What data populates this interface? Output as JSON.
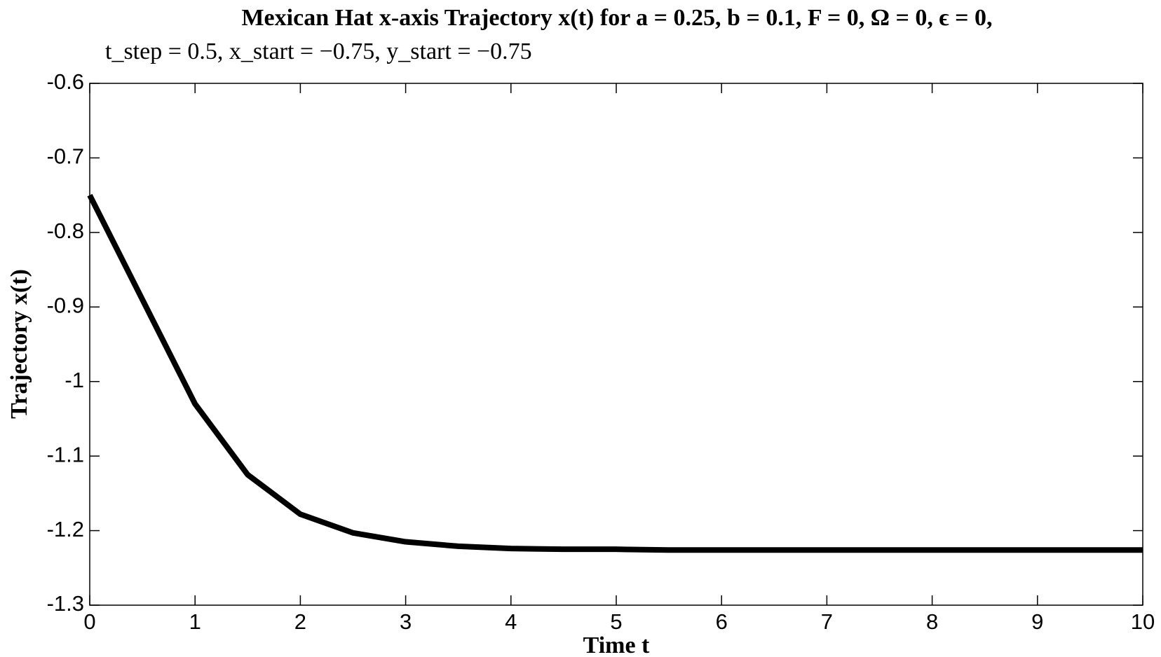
{
  "chart_data": {
    "type": "line",
    "title": [
      "Mexican Hat x-axis Trajectory x(t) for a = 0.25, b = 0.1, F = 0, Ω = 0, ϵ = 0,",
      "t_step = 0.5, x_start = −0.75, y_start = −0.75"
    ],
    "x_label": "Time t",
    "y_label": "Trajectory x(t)",
    "x": [
      0,
      0.5,
      1,
      1.5,
      2,
      2.5,
      3,
      3.5,
      4,
      4.5,
      5,
      5.5,
      6,
      6.5,
      7,
      7.5,
      8,
      8.5,
      9,
      9.5,
      10
    ],
    "series": [
      {
        "color": "#000000",
        "values": [
          -0.75,
          -0.89,
          -1.03,
          -1.125,
          -1.178,
          -1.203,
          -1.215,
          -1.221,
          -1.224,
          -1.225,
          -1.225,
          -1.226,
          -1.226,
          -1.226,
          -1.226,
          -1.226,
          -1.226,
          -1.226,
          -1.226,
          -1.226,
          -1.226
        ]
      }
    ],
    "xlim": [
      0,
      10
    ],
    "xticks": [
      0,
      1,
      2,
      3,
      4,
      5,
      6,
      7,
      8,
      9,
      10
    ],
    "ylim": [
      -1.3,
      -0.6
    ],
    "yticks": [
      -1.3,
      -1.2,
      -1.1,
      -1,
      -0.9,
      -0.8,
      -0.7,
      -0.6
    ],
    "grid": false
  }
}
